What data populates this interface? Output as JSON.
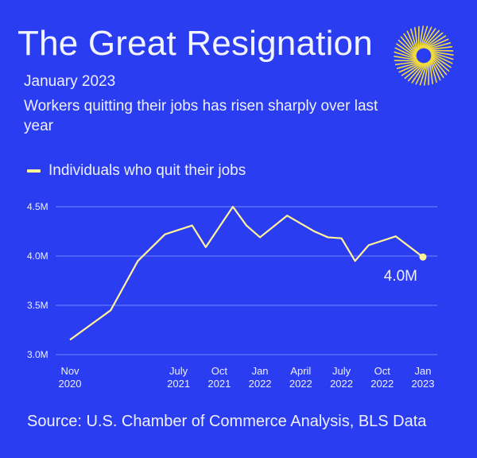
{
  "header": {
    "title": "The Great Resignation",
    "subtitle": "January 2023",
    "description": "Workers quitting their jobs has risen sharply over last year",
    "logo_icon": "sunburst-logo-icon"
  },
  "footer": {
    "source": "Source: U.S. Chamber of Commerce Analysis, BLS Data"
  },
  "colors": {
    "background": "#2b3df0",
    "line": "#fff39a",
    "gridline": "#6f86ff",
    "text": "#eef0ff"
  },
  "chart_data": {
    "type": "line",
    "title": "",
    "xlabel": "",
    "ylabel": "",
    "ylim": [
      3.0,
      4.5
    ],
    "grid": true,
    "legend_position": "top-left",
    "yticks": [
      {
        "value": 4.5,
        "label": "4.5M"
      },
      {
        "value": 4.0,
        "label": "4.0M"
      },
      {
        "value": 3.5,
        "label": "3.5M"
      },
      {
        "value": 3.0,
        "label": "3.0M"
      }
    ],
    "x_tick_labels": [
      {
        "date": "2020-11",
        "line1": "Nov",
        "line2": "2020"
      },
      {
        "date": "2021-07",
        "line1": "July",
        "line2": "2021"
      },
      {
        "date": "2021-10",
        "line1": "Oct",
        "line2": "2021"
      },
      {
        "date": "2022-01",
        "line1": "Jan",
        "line2": "2022"
      },
      {
        "date": "2022-04",
        "line1": "April",
        "line2": "2022"
      },
      {
        "date": "2022-07",
        "line1": "July",
        "line2": "2022"
      },
      {
        "date": "2022-10",
        "line1": "Oct",
        "line2": "2022"
      },
      {
        "date": "2023-01",
        "line1": "Jan",
        "line2": "2023"
      }
    ],
    "series": [
      {
        "name": "Individuals who quit their jobs",
        "points": [
          {
            "x": "2020-11",
            "y": 3.15
          },
          {
            "x": "2021-02",
            "y": 3.45
          },
          {
            "x": "2021-04",
            "y": 3.95
          },
          {
            "x": "2021-06",
            "y": 4.22
          },
          {
            "x": "2021-08",
            "y": 4.31
          },
          {
            "x": "2021-09",
            "y": 4.09
          },
          {
            "x": "2021-11",
            "y": 4.5
          },
          {
            "x": "2021-12",
            "y": 4.31
          },
          {
            "x": "2022-01",
            "y": 4.19
          },
          {
            "x": "2022-03",
            "y": 4.41
          },
          {
            "x": "2022-05",
            "y": 4.25
          },
          {
            "x": "2022-06",
            "y": 4.19
          },
          {
            "x": "2022-07",
            "y": 4.18
          },
          {
            "x": "2022-08",
            "y": 3.95
          },
          {
            "x": "2022-09",
            "y": 4.11
          },
          {
            "x": "2022-11",
            "y": 4.2
          },
          {
            "x": "2023-01",
            "y": 3.99
          }
        ]
      }
    ],
    "annotations": [
      {
        "x": "2023-01",
        "y": 3.99,
        "text": "4.0M"
      }
    ]
  }
}
